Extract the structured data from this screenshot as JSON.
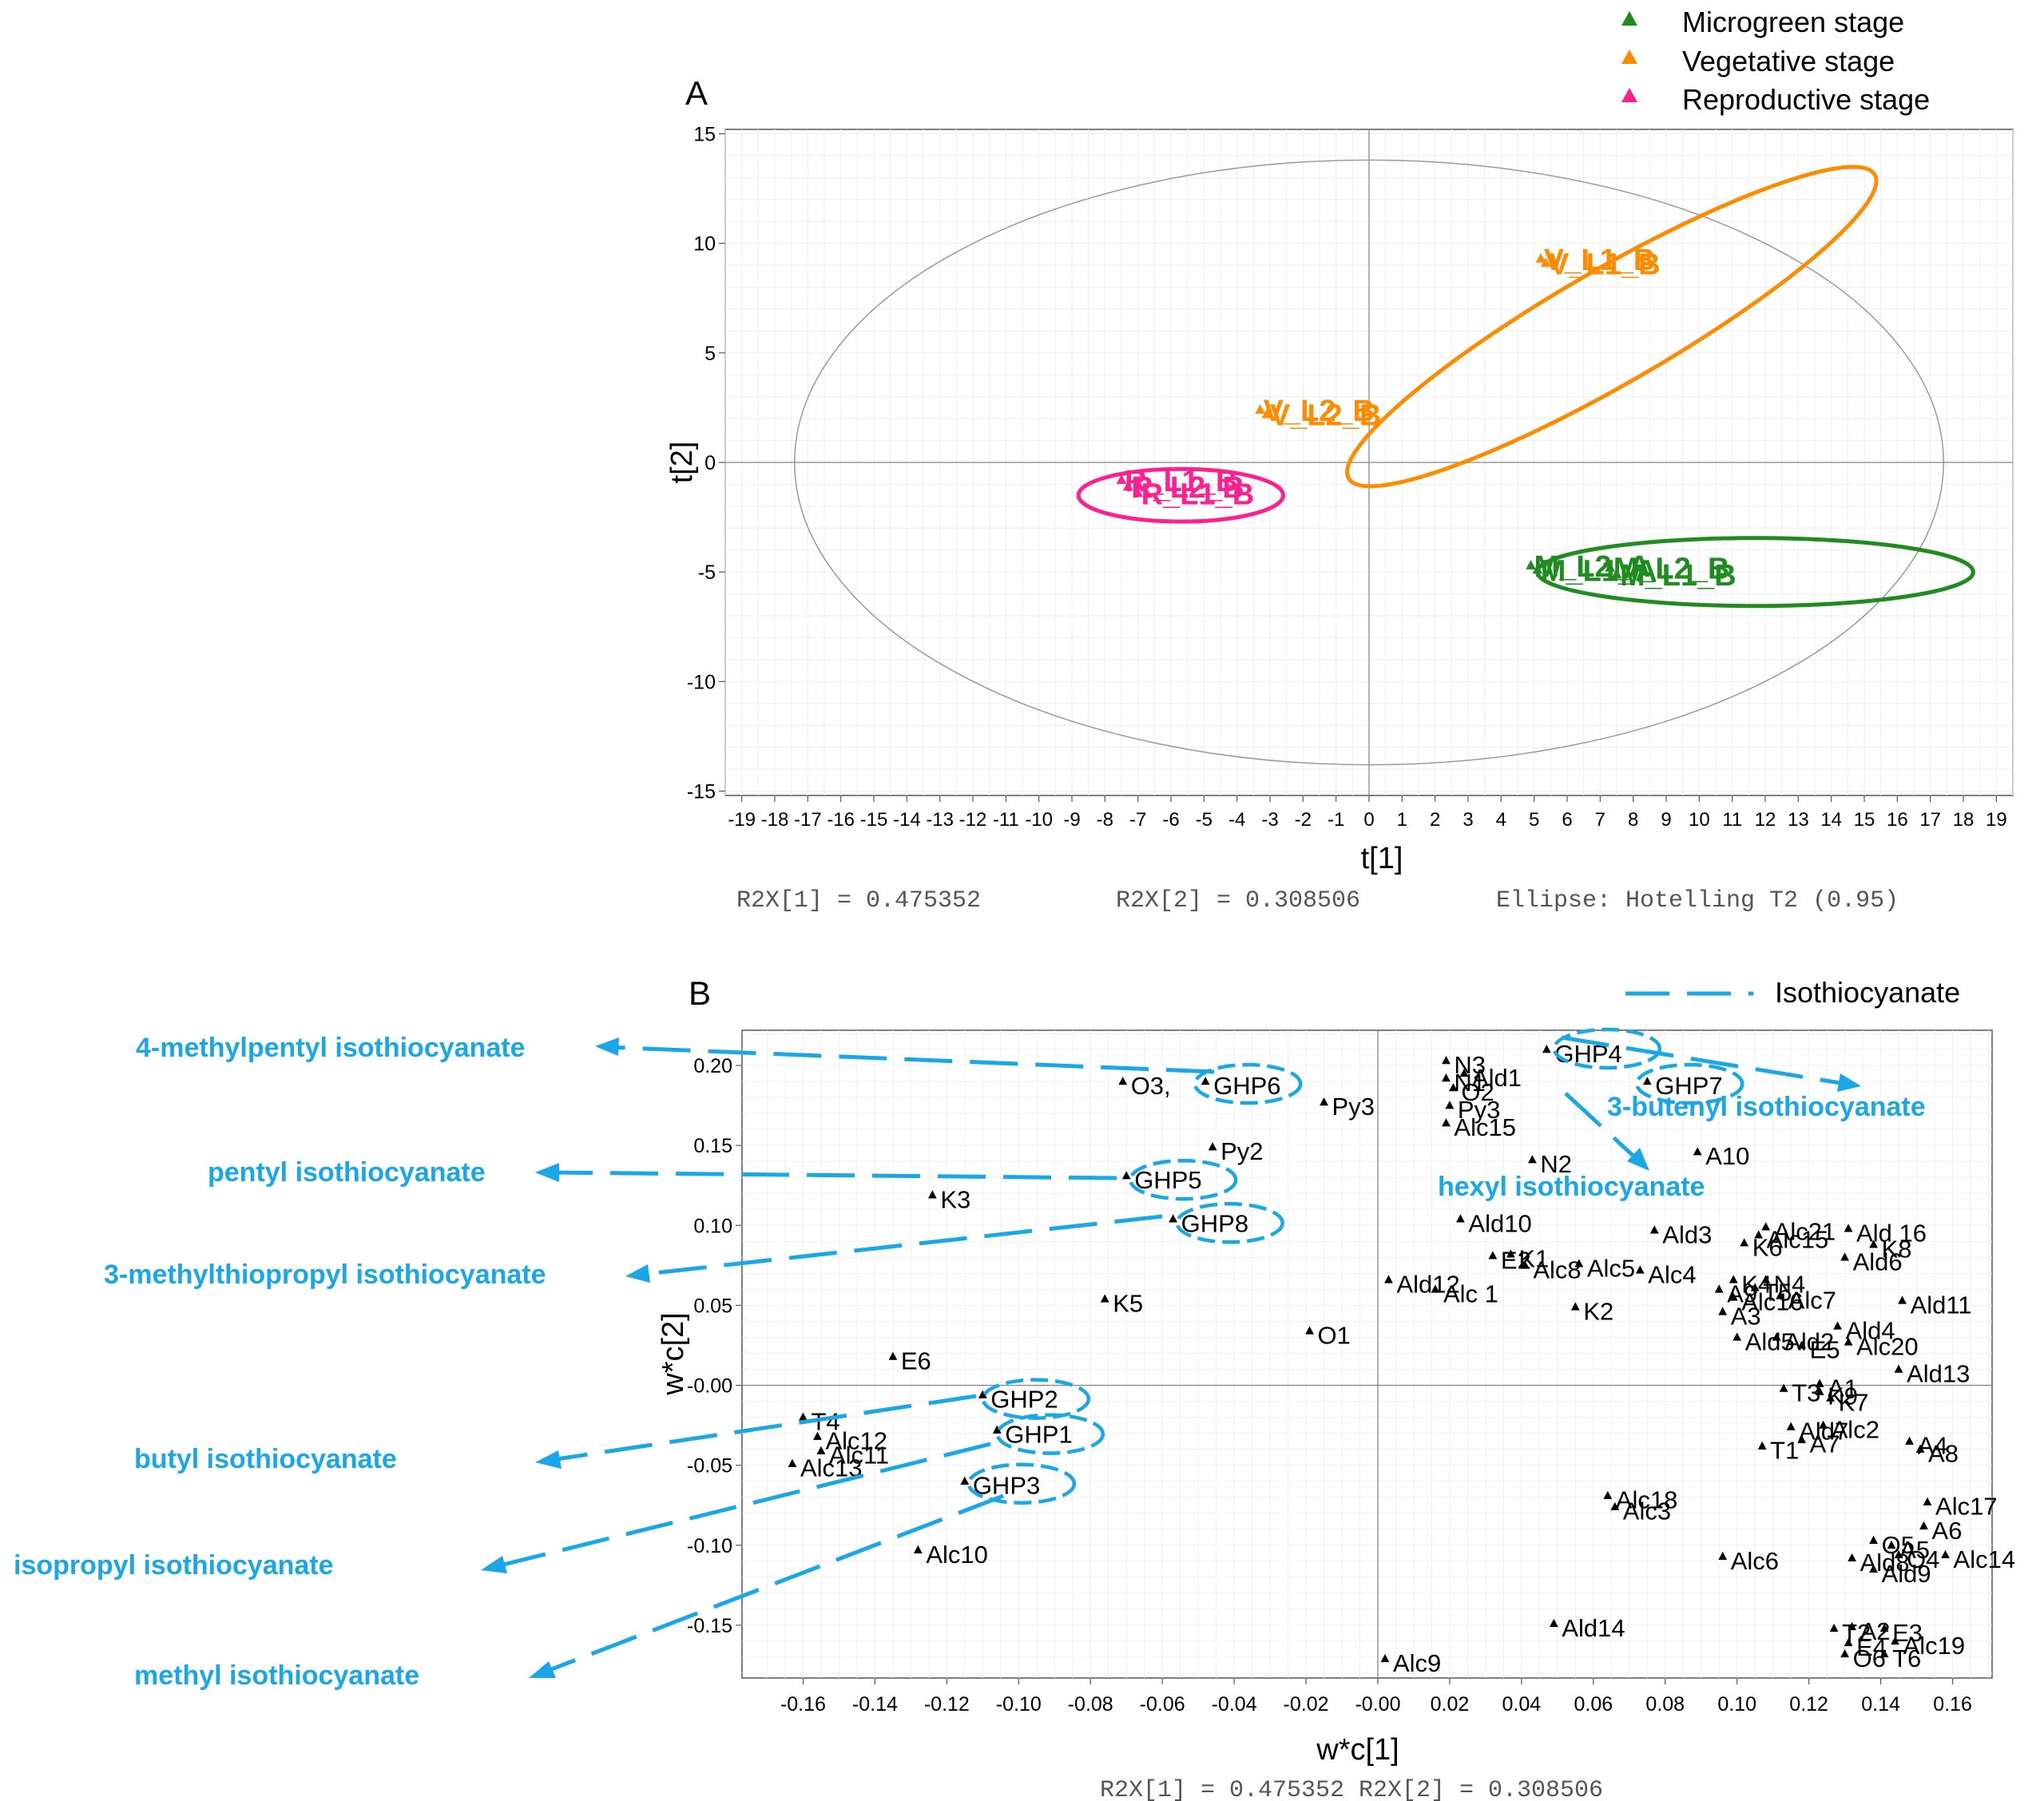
{
  "legend": {
    "items": [
      {
        "label": "Microgreen stage",
        "color": "#1e8c1e"
      },
      {
        "label": "Vegetative stage",
        "color": "#ff8c00"
      },
      {
        "label": "Reproductive stage",
        "color": "#ff1f8e"
      }
    ]
  },
  "panel_a": {
    "letter": "A",
    "footer": {
      "r2x1": "R2X[1] = 0.475352",
      "r2x2": "R2X[2] = 0.308506",
      "ellipse": "Ellipse: Hotelling T2 (0.95)"
    }
  },
  "panel_b": {
    "letter": "B",
    "footer": "R2X[1] = 0.475352 R2X[2] = 0.308506",
    "legend_label": "Isothiocyanate",
    "accent_color": "#1aa7e8",
    "callouts": [
      {
        "text": "4-methylpentyl isothiocyanate",
        "target": "GHP6"
      },
      {
        "text": "pentyl isothiocyanate",
        "target": "GHP5"
      },
      {
        "text": "3-methylthiopropyl isothiocyanate",
        "target": "GHP8"
      },
      {
        "text": "butyl isothiocyanate",
        "target": "GHP2"
      },
      {
        "text": "isopropyl isothiocyanate",
        "target": "GHP1"
      },
      {
        "text": "methyl isothiocyanate",
        "target": "GHP3"
      },
      {
        "text": "3-butenyl isothiocyanate",
        "target": "GHP4"
      },
      {
        "text": "hexyl isothiocyanate",
        "target": "GHP7"
      }
    ]
  },
  "chart_data": [
    {
      "type": "scatter",
      "title": "A",
      "xlabel": "t[1]",
      "ylabel": "t[2]",
      "xlim": [
        -19.5,
        19.5
      ],
      "ylim": [
        -15.2,
        15.2
      ],
      "xticks": [
        -19,
        -18,
        -17,
        -16,
        -15,
        -14,
        -13,
        -12,
        -11,
        -10,
        -9,
        -8,
        -7,
        -6,
        -5,
        -4,
        -3,
        -2,
        -1,
        0,
        1,
        2,
        3,
        4,
        5,
        6,
        7,
        8,
        9,
        10,
        11,
        12,
        13,
        14,
        15,
        16,
        17,
        18,
        19
      ],
      "yticks": [
        -15,
        -10,
        -5,
        0,
        5,
        10,
        15
      ],
      "grid": true,
      "hotelling_ellipse": {
        "cx": 0,
        "cy": 0,
        "rx": 17.4,
        "ry": 13.8
      },
      "groups": [
        {
          "name": "Vegetative stage",
          "color": "#ff8c00",
          "ellipse": {
            "cx": 7.35,
            "cy": 6.2,
            "rx": 9.2,
            "ry": 2.6,
            "angle_deg": 30
          },
          "points": [
            {
              "label": "V_L1_B",
              "x": 5.2,
              "y": 9.3
            },
            {
              "label": "V_L1_B",
              "x": 5.35,
              "y": 9.1
            },
            {
              "label": "V_L2_B",
              "x": -3.3,
              "y": 2.4
            },
            {
              "label": "V_L2_B",
              "x": -3.1,
              "y": 2.2
            }
          ]
        },
        {
          "name": "Reproductive stage",
          "color": "#ff1f8e",
          "ellipse": {
            "cx": -5.7,
            "cy": -1.5,
            "rx": 3.1,
            "ry": 1.2,
            "angle_deg": 0
          },
          "points": [
            {
              "label": "R_L1_B",
              "x": -7.5,
              "y": -0.8
            },
            {
              "label": "R_L2_B",
              "x": -7.3,
              "y": -1.1
            },
            {
              "label": "R_L1_B",
              "x": -7.0,
              "y": -1.4
            }
          ]
        },
        {
          "name": "Microgreen stage",
          "color": "#1e8c1e",
          "ellipse": {
            "cx": 11.7,
            "cy": -5.0,
            "rx": 6.6,
            "ry": 1.55,
            "angle_deg": 0
          },
          "points": [
            {
              "label": "M_L2_A",
              "x": 4.9,
              "y": -4.7
            },
            {
              "label": "M_L1_A",
              "x": 5.1,
              "y": -4.9
            },
            {
              "label": "M_L2_B",
              "x": 7.3,
              "y": -4.8
            },
            {
              "label": "M_L1_B",
              "x": 7.5,
              "y": -5.1
            }
          ]
        }
      ],
      "footer": "R2X[1] = 0.475352      R2X[2] = 0.308506      Ellipse: Hotelling T2 (0.95)"
    },
    {
      "type": "scatter",
      "title": "B",
      "xlabel": "w*c[1]",
      "ylabel": "w*c[2]",
      "xlim": [
        -0.177,
        0.171
      ],
      "ylim": [
        -0.183,
        0.222
      ],
      "xticks": [
        "-0.16",
        "-0.14",
        "-0.12",
        "-0.10",
        "-0.08",
        "-0.06",
        "-0.04",
        "-0.02",
        "-0.00",
        "0.02",
        "0.04",
        "0.06",
        "0.08",
        "0.10",
        "0.12",
        "0.14",
        "0.16"
      ],
      "xtick_values": [
        -0.16,
        -0.14,
        -0.12,
        -0.1,
        -0.08,
        -0.06,
        -0.04,
        -0.02,
        0,
        0.02,
        0.04,
        0.06,
        0.08,
        0.1,
        0.12,
        0.14,
        0.16
      ],
      "yticks": [
        "0.20",
        "0.15",
        "0.10",
        "0.05",
        "-0.00",
        "-0.05",
        "-0.10",
        "-0.15"
      ],
      "ytick_values": [
        0.2,
        0.15,
        0.1,
        0.05,
        0,
        -0.05,
        -0.1,
        -0.15
      ],
      "grid": true,
      "points": [
        {
          "label": "GHP6",
          "x": -0.048,
          "y": 0.19
        },
        {
          "label": "O3,",
          "x": -0.071,
          "y": 0.19
        },
        {
          "label": "GHP5",
          "x": -0.07,
          "y": 0.131
        },
        {
          "label": "GHP8",
          "x": -0.057,
          "y": 0.104
        },
        {
          "label": "Py2",
          "x": -0.046,
          "y": 0.149
        },
        {
          "label": "K3",
          "x": -0.124,
          "y": 0.119
        },
        {
          "label": "K5",
          "x": -0.076,
          "y": 0.054
        },
        {
          "label": "E6",
          "x": -0.135,
          "y": 0.018
        },
        {
          "label": "O1",
          "x": -0.019,
          "y": 0.034
        },
        {
          "label": "GHP2",
          "x": -0.11,
          "y": -0.006
        },
        {
          "label": "GHP1",
          "x": -0.106,
          "y": -0.028
        },
        {
          "label": "GHP3",
          "x": -0.115,
          "y": -0.06
        },
        {
          "label": "T4",
          "x": -0.16,
          "y": -0.02
        },
        {
          "label": "Alc12",
          "x": -0.156,
          "y": -0.032
        },
        {
          "label": "Alc11",
          "x": -0.155,
          "y": -0.041
        },
        {
          "label": "Alc13",
          "x": -0.163,
          "y": -0.049
        },
        {
          "label": "Alc10",
          "x": -0.128,
          "y": -0.103
        },
        {
          "label": "Py3",
          "x": -0.015,
          "y": 0.177
        },
        {
          "label": "N3",
          "x": 0.019,
          "y": 0.203
        },
        {
          "label": "GHP4",
          "x": 0.047,
          "y": 0.21
        },
        {
          "label": "GHP7",
          "x": 0.075,
          "y": 0.19
        },
        {
          "label": "N1",
          "x": 0.019,
          "y": 0.192
        },
        {
          "label": "Ald1",
          "x": 0.024,
          "y": 0.195
        },
        {
          "label": "O2",
          "x": 0.021,
          "y": 0.186
        },
        {
          "label": "Py3",
          "x": 0.02,
          "y": 0.175
        },
        {
          "label": "Alc15",
          "x": 0.019,
          "y": 0.164
        },
        {
          "label": "N2",
          "x": 0.043,
          "y": 0.141
        },
        {
          "label": "A10",
          "x": 0.089,
          "y": 0.146
        },
        {
          "label": "Ald10",
          "x": 0.023,
          "y": 0.104
        },
        {
          "label": "E2",
          "x": 0.032,
          "y": 0.081
        },
        {
          "label": "K1",
          "x": 0.037,
          "y": 0.082
        },
        {
          "label": "Alc8",
          "x": 0.041,
          "y": 0.075
        },
        {
          "label": "Alc5",
          "x": 0.056,
          "y": 0.076
        },
        {
          "label": "Alc4",
          "x": 0.073,
          "y": 0.072
        },
        {
          "label": "Ald12",
          "x": 0.003,
          "y": 0.066
        },
        {
          "label": "Alc 1",
          "x": 0.016,
          "y": 0.06
        },
        {
          "label": "K2",
          "x": 0.055,
          "y": 0.049
        },
        {
          "label": "Ald3",
          "x": 0.077,
          "y": 0.097
        },
        {
          "label": "Alc21",
          "x": 0.108,
          "y": 0.099
        },
        {
          "label": "Ald 16",
          "x": 0.131,
          "y": 0.098
        },
        {
          "label": "K6",
          "x": 0.102,
          "y": 0.089
        },
        {
          "label": "Alc15",
          "x": 0.106,
          "y": 0.094
        },
        {
          "label": "K8",
          "x": 0.138,
          "y": 0.088
        },
        {
          "label": "Ald6",
          "x": 0.13,
          "y": 0.08
        },
        {
          "label": "A9",
          "x": 0.095,
          "y": 0.06
        },
        {
          "label": "K4",
          "x": 0.099,
          "y": 0.066
        },
        {
          "label": "N4",
          "x": 0.108,
          "y": 0.066
        },
        {
          "label": "Alc16",
          "x": 0.099,
          "y": 0.055
        },
        {
          "label": "Alc7",
          "x": 0.112,
          "y": 0.056
        },
        {
          "label": "T5",
          "x": 0.105,
          "y": 0.061
        },
        {
          "label": "A3",
          "x": 0.096,
          "y": 0.046
        },
        {
          "label": "Ald11",
          "x": 0.146,
          "y": 0.053
        },
        {
          "label": "Ald4",
          "x": 0.128,
          "y": 0.037
        },
        {
          "label": "Alc20",
          "x": 0.131,
          "y": 0.027
        },
        {
          "label": "Ald5",
          "x": 0.1,
          "y": 0.03
        },
        {
          "label": "Ald2",
          "x": 0.111,
          "y": 0.03
        },
        {
          "label": "E5",
          "x": 0.118,
          "y": 0.025
        },
        {
          "label": "Ald13",
          "x": 0.145,
          "y": 0.01
        },
        {
          "label": "T3",
          "x": 0.113,
          "y": -0.002
        },
        {
          "label": "A1",
          "x": 0.123,
          "y": 0.001
        },
        {
          "label": "K7",
          "x": 0.126,
          "y": -0.008
        },
        {
          "label": "K9",
          "x": 0.123,
          "y": -0.004
        },
        {
          "label": "Ald7",
          "x": 0.115,
          "y": -0.026
        },
        {
          "label": "Alc2",
          "x": 0.124,
          "y": -0.025
        },
        {
          "label": "A7",
          "x": 0.118,
          "y": -0.034
        },
        {
          "label": "T1",
          "x": 0.107,
          "y": -0.038
        },
        {
          "label": "A4",
          "x": 0.148,
          "y": -0.035
        },
        {
          "label": "A8",
          "x": 0.151,
          "y": -0.04
        },
        {
          "label": "Alc18",
          "x": 0.064,
          "y": -0.069
        },
        {
          "label": "Alc3",
          "x": 0.066,
          "y": -0.076
        },
        {
          "label": "Alc17",
          "x": 0.153,
          "y": -0.073
        },
        {
          "label": "A6",
          "x": 0.152,
          "y": -0.088
        },
        {
          "label": "O5",
          "x": 0.138,
          "y": -0.097
        },
        {
          "label": "A5",
          "x": 0.143,
          "y": -0.1
        },
        {
          "label": "O4",
          "x": 0.145,
          "y": -0.106
        },
        {
          "label": "Alc14",
          "x": 0.158,
          "y": -0.106
        },
        {
          "label": "Ald8",
          "x": 0.132,
          "y": -0.108
        },
        {
          "label": "Ald9",
          "x": 0.138,
          "y": -0.115
        },
        {
          "label": "Alc6",
          "x": 0.096,
          "y": -0.107
        },
        {
          "label": "Ald14",
          "x": 0.049,
          "y": -0.149
        },
        {
          "label": "Alc9",
          "x": 0.002,
          "y": -0.171
        },
        {
          "label": "T2",
          "x": 0.127,
          "y": -0.152
        },
        {
          "label": "A2",
          "x": 0.132,
          "y": -0.151
        },
        {
          "label": "E3",
          "x": 0.141,
          "y": -0.152
        },
        {
          "label": "E4",
          "x": 0.131,
          "y": -0.161
        },
        {
          "label": "Alc19",
          "x": 0.144,
          "y": -0.16
        },
        {
          "label": "O6",
          "x": 0.13,
          "y": -0.168
        },
        {
          "label": "T6",
          "x": 0.141,
          "y": -0.168
        }
      ],
      "isothiocyanate_groups": [
        {
          "label": "GHP6",
          "x": -0.046,
          "y": 0.191
        },
        {
          "label": "GHP5",
          "x": -0.064,
          "y": 0.131
        },
        {
          "label": "GHP8",
          "x": -0.051,
          "y": 0.104
        },
        {
          "label": "GHP4",
          "x": 0.054,
          "y": 0.213
        },
        {
          "label": "GHP7",
          "x": 0.077,
          "y": 0.191
        },
        {
          "label": "GHP2",
          "x": -0.105,
          "y": -0.006
        },
        {
          "label": "GHP1",
          "x": -0.101,
          "y": -0.028
        },
        {
          "label": "GHP3",
          "x": -0.109,
          "y": -0.059
        }
      ],
      "footer": "R2X[1] = 0.475352 R2X[2] = 0.308506"
    }
  ]
}
